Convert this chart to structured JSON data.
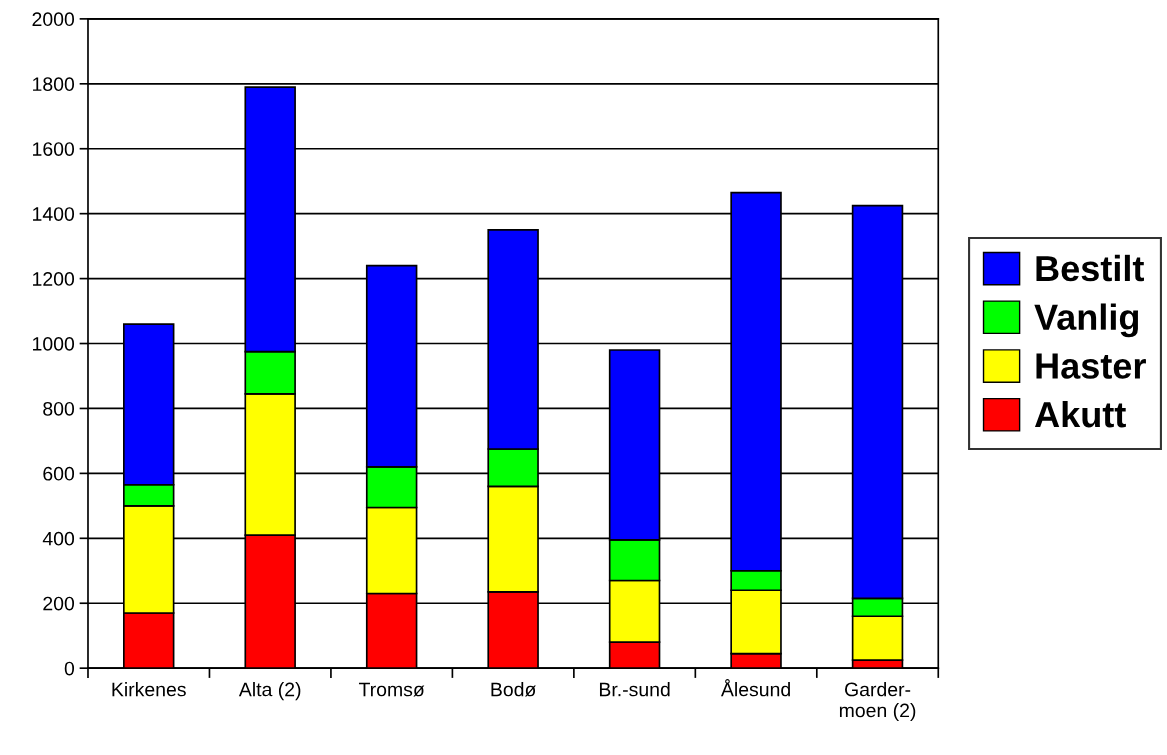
{
  "chart_data": {
    "type": "bar",
    "stacked": true,
    "categories": [
      "Kirkenes",
      "Alta (2)",
      "Tromsø",
      "Bodø",
      "Br.-sund",
      "Ålesund",
      "Garder-\nmoen (2)"
    ],
    "series": [
      {
        "name": "Akutt",
        "color": "#ff0000",
        "values": [
          170,
          410,
          230,
          235,
          80,
          45,
          25
        ]
      },
      {
        "name": "Haster",
        "color": "#ffff00",
        "values": [
          330,
          435,
          265,
          325,
          190,
          195,
          135
        ]
      },
      {
        "name": "Vanlig",
        "color": "#00ff00",
        "values": [
          65,
          130,
          125,
          115,
          125,
          60,
          55
        ]
      },
      {
        "name": "Bestilt",
        "color": "#0000ff",
        "values": [
          495,
          815,
          620,
          675,
          585,
          1165,
          1210
        ]
      }
    ],
    "ylim": [
      0,
      2000
    ],
    "yticks": [
      0,
      200,
      400,
      600,
      800,
      1000,
      1200,
      1400,
      1600,
      1800,
      2000
    ],
    "grid": "y",
    "legend": "right"
  }
}
